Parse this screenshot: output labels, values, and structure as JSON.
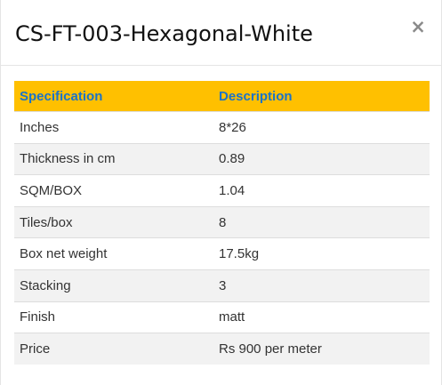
{
  "modal": {
    "title": "CS-FT-003-Hexagonal-White",
    "close_label": "×"
  },
  "table": {
    "headers": [
      "Specification",
      "Description"
    ],
    "rows": [
      {
        "spec": "Inches",
        "desc": "8*26"
      },
      {
        "spec": "Thickness in cm",
        "desc": "0.89"
      },
      {
        "spec": "SQM/BOX",
        "desc": "1.04"
      },
      {
        "spec": "Tiles/box",
        "desc": "8"
      },
      {
        "spec": "Box net weight",
        "desc": "17.5kg"
      },
      {
        "spec": "Stacking",
        "desc": "3"
      },
      {
        "spec": "Finish",
        "desc": "matt"
      },
      {
        "spec": "Price",
        "desc": "Rs 900 per meter"
      }
    ]
  },
  "colors": {
    "header_background": "#ffc000",
    "header_text": "#1a73c8",
    "row_alt_background": "#f2f2f2"
  }
}
